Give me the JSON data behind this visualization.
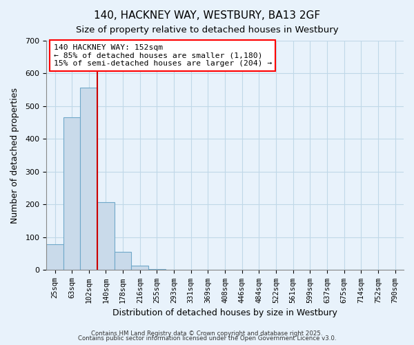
{
  "title1": "140, HACKNEY WAY, WESTBURY, BA13 2GF",
  "title2": "Size of property relative to detached houses in Westbury",
  "xlabel": "Distribution of detached houses by size in Westbury",
  "ylabel": "Number of detached properties",
  "bar_values": [
    78,
    467,
    557,
    207,
    55,
    14,
    2,
    0,
    0,
    0,
    0,
    0,
    0,
    0,
    0,
    0,
    0,
    0,
    0,
    0,
    0
  ],
  "bar_labels": [
    "25sqm",
    "63sqm",
    "102sqm",
    "140sqm",
    "178sqm",
    "216sqm",
    "255sqm",
    "293sqm",
    "331sqm",
    "369sqm",
    "408sqm",
    "446sqm",
    "484sqm",
    "522sqm",
    "561sqm",
    "599sqm",
    "637sqm",
    "675sqm",
    "714sqm",
    "752sqm",
    "790sqm"
  ],
  "bar_color": "#c9daea",
  "bar_edge_color": "#6fa8c9",
  "grid_color": "#c0d8e8",
  "bg_color": "#e8f2fb",
  "vline_color": "#cc0000",
  "annotation_box_text": "140 HACKNEY WAY: 152sqm\n← 85% of detached houses are smaller (1,180)\n15% of semi-detached houses are larger (204) →",
  "ylim": [
    0,
    700
  ],
  "yticks": [
    0,
    100,
    200,
    300,
    400,
    500,
    600,
    700
  ],
  "footer1": "Contains HM Land Registry data © Crown copyright and database right 2025.",
  "footer2": "Contains public sector information licensed under the Open Government Licence v3.0."
}
